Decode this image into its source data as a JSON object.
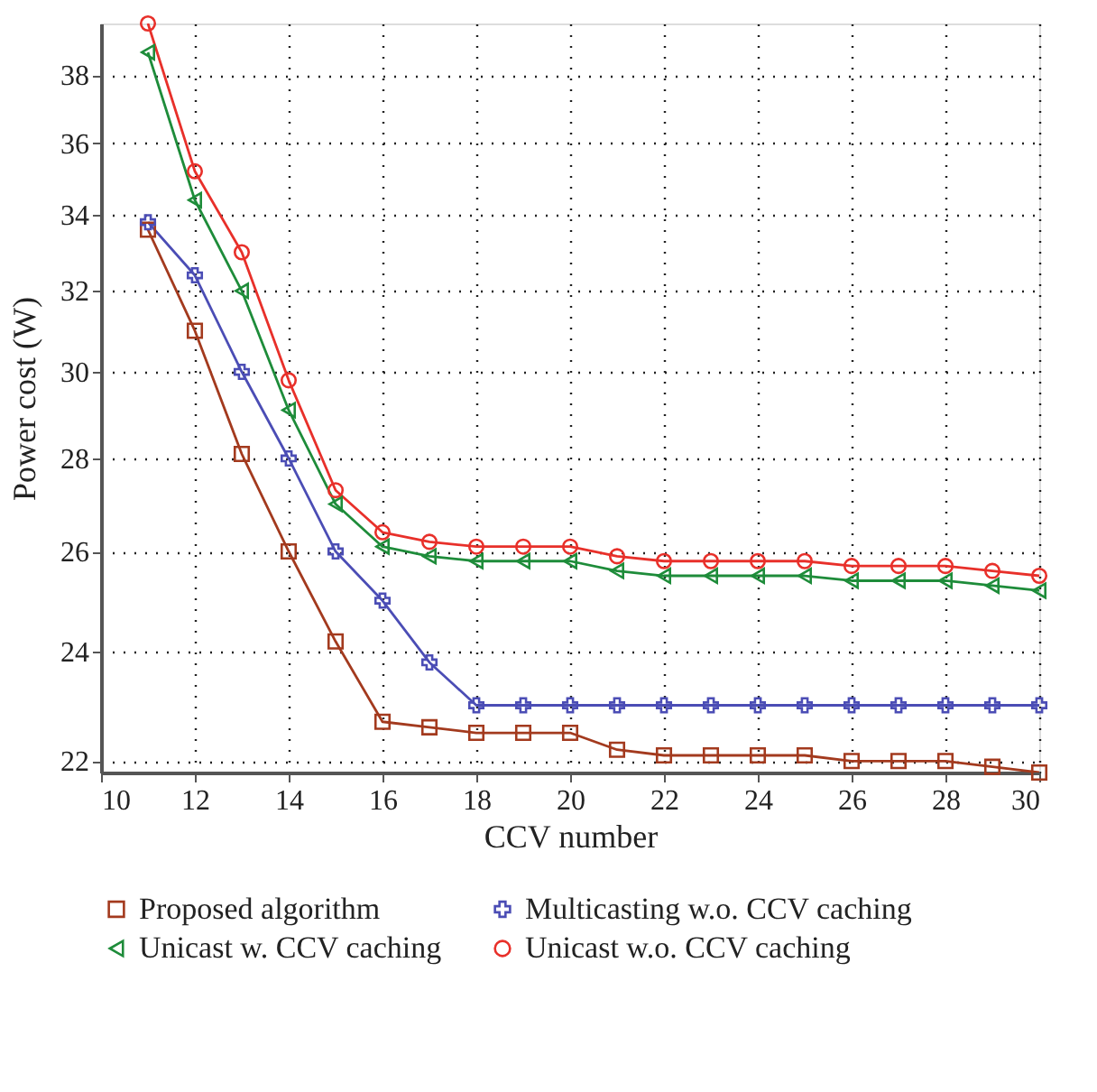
{
  "chart_data": {
    "type": "line",
    "xlabel": "CCV number",
    "ylabel": "Power cost (W)",
    "x": [
      11,
      12,
      13,
      14,
      15,
      16,
      17,
      18,
      19,
      20,
      21,
      22,
      23,
      24,
      25,
      26,
      27,
      28,
      29,
      30
    ],
    "xlim": [
      10,
      30
    ],
    "xticks": [
      10,
      12,
      14,
      16,
      18,
      20,
      22,
      24,
      26,
      28,
      30
    ],
    "ylim": [
      21.8,
      39.6
    ],
    "yticks": [
      22,
      24,
      26,
      28,
      30,
      32,
      34,
      36,
      38
    ],
    "log": "y",
    "grid": true,
    "legend": "bottom",
    "line_style": "solid",
    "series": [
      {
        "name": "Proposed algorithm",
        "color": "#a33a1e",
        "marker": "square",
        "values": [
          33.6,
          31.0,
          28.1,
          26.0,
          24.2,
          22.7,
          22.6,
          22.5,
          22.5,
          22.5,
          22.2,
          22.1,
          22.1,
          22.1,
          22.1,
          22.0,
          22.0,
          22.0,
          21.9,
          21.8
        ]
      },
      {
        "name": "Multicasting w.o. CCV caching",
        "color": "#4b4db5",
        "marker": "cross",
        "values": [
          33.8,
          32.4,
          30.0,
          28.0,
          26.0,
          25.0,
          23.8,
          23.0,
          23.0,
          23.0,
          23.0,
          23.0,
          23.0,
          23.0,
          23.0,
          23.0,
          23.0,
          23.0,
          23.0,
          23.0
        ]
      },
      {
        "name": "Unicast w. CCV caching",
        "color": "#1e8c3a",
        "marker": "triangle",
        "values": [
          38.7,
          34.4,
          32.0,
          29.1,
          27.0,
          26.1,
          25.9,
          25.8,
          25.8,
          25.8,
          25.6,
          25.5,
          25.5,
          25.5,
          25.5,
          25.4,
          25.4,
          25.4,
          25.3,
          25.2
        ]
      },
      {
        "name": "Unicast w.o. CCV caching",
        "color": "#e8302a",
        "marker": "circle",
        "values": [
          39.6,
          35.2,
          33.0,
          29.8,
          27.3,
          26.4,
          26.2,
          26.1,
          26.1,
          26.1,
          25.9,
          25.8,
          25.8,
          25.8,
          25.8,
          25.7,
          25.7,
          25.7,
          25.6,
          25.5
        ]
      }
    ]
  }
}
